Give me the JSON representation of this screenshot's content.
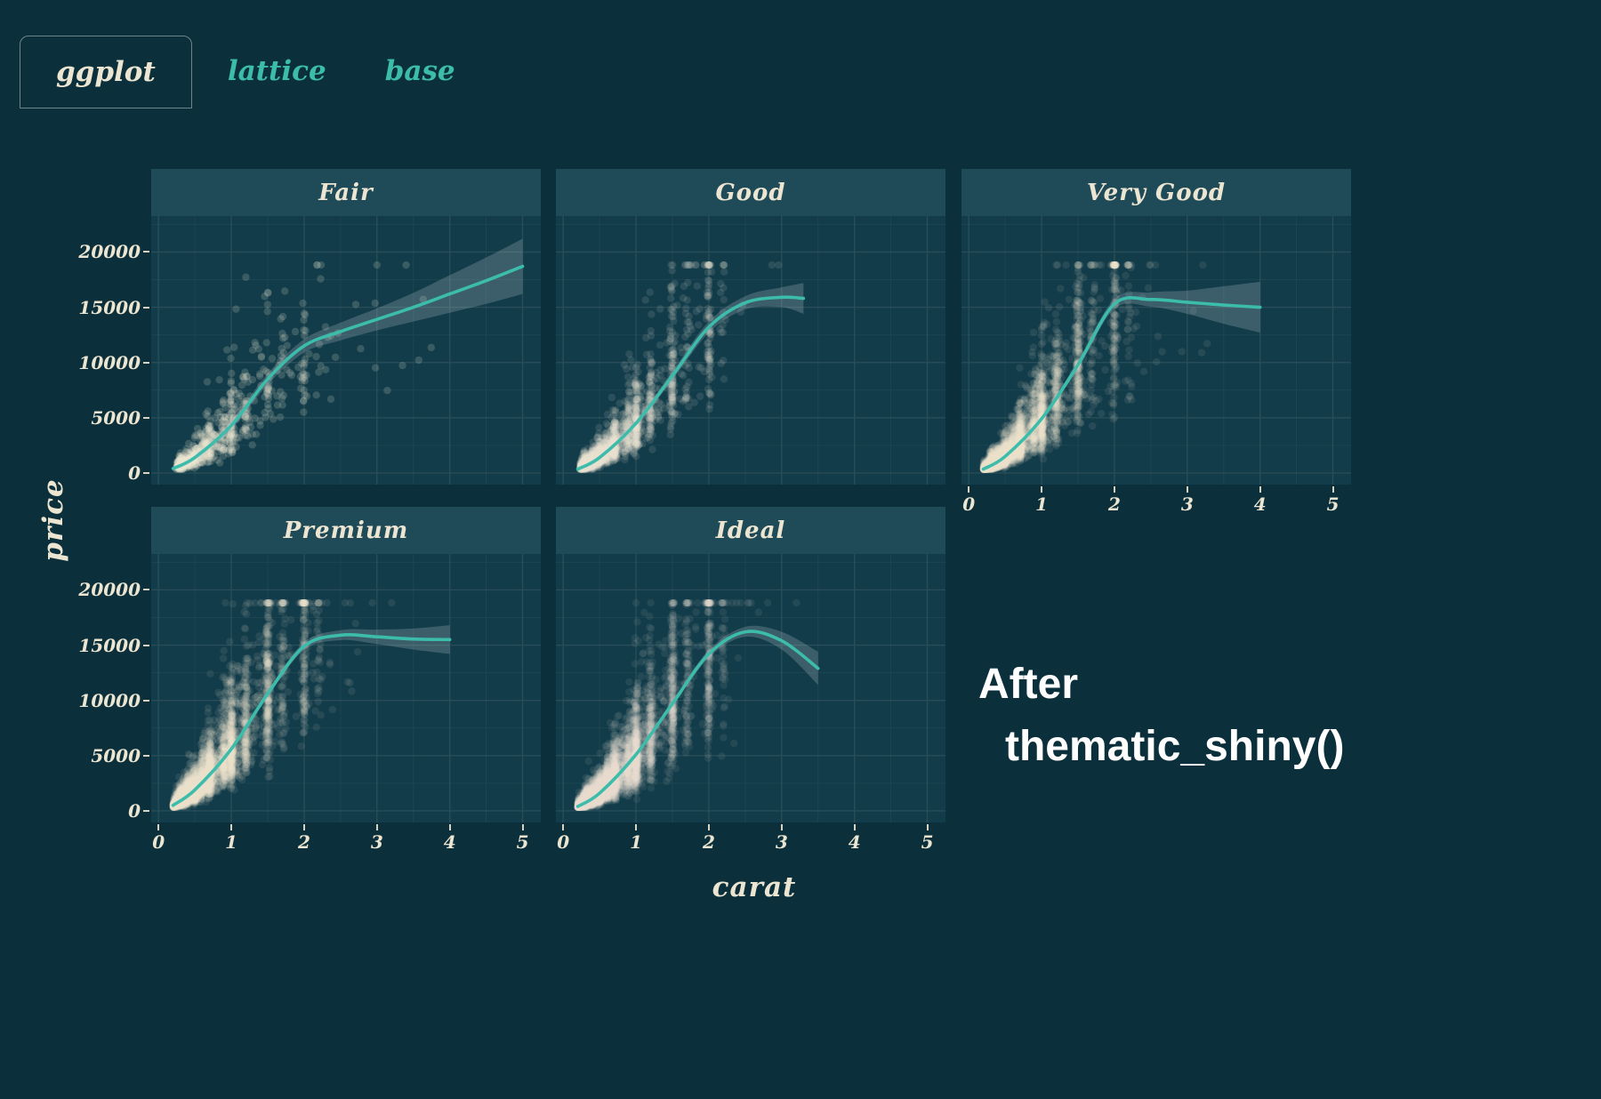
{
  "tabs": {
    "items": [
      {
        "label": "ggplot",
        "active": true
      },
      {
        "label": "lattice",
        "active": false
      },
      {
        "label": "base",
        "active": false
      }
    ]
  },
  "annotation": {
    "line1": "After",
    "line2": "thematic_shiny()"
  },
  "colors": {
    "page_bg": "#0b303b",
    "panel_bg": "#123c4a",
    "strip_bg": "#1f4b58",
    "foreground": "#ece5d1",
    "accent": "#3cbcab",
    "annotation_text": "#ffffff",
    "point": "#efe7d4",
    "ribbon": "rgba(205,220,225,0.22)",
    "grid_major": "rgba(236,231,211,0.10)",
    "grid_minor": "rgba(236,231,211,0.05)",
    "tab_inactive": "#3cbcab",
    "tab_active": "#ece5d1"
  },
  "chart_data": {
    "type": "scatter",
    "title": "",
    "xlabel": "carat",
    "ylabel": "price",
    "xlim": [
      -0.1,
      5.25
    ],
    "ylim": [
      -1050,
      23250
    ],
    "x_ticks": [
      0,
      1,
      2,
      3,
      4,
      5
    ],
    "y_ticks": [
      0,
      5000,
      10000,
      15000,
      20000
    ],
    "grid": "on",
    "legend": "none",
    "facet_layout": "3 columns, 2 rows, last cell empty",
    "carat_spikes": [
      [
        0.3,
        9
      ],
      [
        0.33,
        4
      ],
      [
        0.4,
        6
      ],
      [
        0.5,
        9
      ],
      [
        0.6,
        4
      ],
      [
        0.7,
        8
      ],
      [
        0.9,
        4
      ],
      [
        1.0,
        9
      ],
      [
        1.2,
        5
      ],
      [
        1.5,
        6
      ],
      [
        1.7,
        2
      ],
      [
        2.0,
        4
      ],
      [
        2.2,
        1
      ]
    ],
    "facets": [
      {
        "label": "Fair",
        "smooth": {
          "x": [
            0.2,
            0.5,
            1,
            1.5,
            2,
            2.5,
            3,
            3.5,
            4,
            4.5,
            5
          ],
          "y": [
            400,
            1400,
            4300,
            8500,
            11500,
            12800,
            13900,
            15000,
            16200,
            17400,
            18700
          ],
          "lo": [
            100,
            1100,
            3900,
            8000,
            10900,
            12000,
            12900,
            13700,
            14500,
            15300,
            16200
          ],
          "hi": [
            700,
            1700,
            4700,
            9000,
            12100,
            13600,
            14900,
            16300,
            17900,
            19500,
            21200
          ]
        },
        "points_sim": {
          "n": 700,
          "seed": 101,
          "spike_prob": 0.45,
          "carat_min": 0.25,
          "carat_max": 5.0,
          "tail_scale": 0.6,
          "noise_sigma": 0.38,
          "price_min": 330,
          "price_cap": 18820,
          "alpha": 0.18
        }
      },
      {
        "label": "Good",
        "smooth": {
          "x": [
            0.2,
            0.5,
            1,
            1.5,
            2,
            2.5,
            3,
            3.3
          ],
          "y": [
            350,
            1400,
            4500,
            8800,
            13200,
            15400,
            15900,
            15800
          ],
          "lo": [
            150,
            1200,
            4250,
            8400,
            12700,
            14800,
            15000,
            14400
          ],
          "hi": [
            550,
            1600,
            4750,
            9200,
            13700,
            16000,
            16800,
            17200
          ]
        },
        "points_sim": {
          "n": 2000,
          "seed": 102,
          "spike_prob": 0.55,
          "carat_min": 0.23,
          "carat_max": 3.05,
          "tail_scale": 0.42,
          "noise_sigma": 0.38,
          "price_min": 330,
          "price_cap": 18820,
          "alpha": 0.12
        }
      },
      {
        "label": "Very Good",
        "smooth": {
          "x": [
            0.2,
            0.5,
            1,
            1.5,
            2,
            2.5,
            3,
            3.5,
            4
          ],
          "y": [
            350,
            1500,
            4900,
            9800,
            15300,
            15700,
            15450,
            15200,
            15000
          ],
          "lo": [
            220,
            1380,
            4720,
            9450,
            14850,
            15050,
            14400,
            13500,
            12700
          ],
          "hi": [
            480,
            1620,
            5080,
            10150,
            15750,
            16350,
            16500,
            16900,
            17300
          ]
        },
        "points_sim": {
          "n": 4200,
          "seed": 103,
          "spike_prob": 0.55,
          "carat_min": 0.2,
          "carat_max": 4.0,
          "tail_scale": 0.4,
          "noise_sigma": 0.38,
          "price_min": 330,
          "price_cap": 18820,
          "alpha": 0.09
        }
      },
      {
        "label": "Premium",
        "smooth": {
          "x": [
            0.2,
            0.5,
            1,
            1.5,
            2,
            2.5,
            3,
            3.5,
            4
          ],
          "y": [
            500,
            1900,
            5600,
            10600,
            14900,
            15900,
            15750,
            15550,
            15500
          ],
          "lo": [
            380,
            1780,
            5430,
            10330,
            14550,
            15450,
            15100,
            14600,
            14200
          ],
          "hi": [
            620,
            2020,
            5770,
            10870,
            15250,
            16350,
            16400,
            16500,
            16800
          ]
        },
        "points_sim": {
          "n": 4600,
          "seed": 104,
          "spike_prob": 0.55,
          "carat_min": 0.2,
          "carat_max": 4.0,
          "tail_scale": 0.42,
          "noise_sigma": 0.38,
          "price_min": 330,
          "price_cap": 18820,
          "alpha": 0.09
        }
      },
      {
        "label": "Ideal",
        "smooth": {
          "x": [
            0.2,
            0.5,
            1,
            1.5,
            2,
            2.5,
            3,
            3.5
          ],
          "y": [
            400,
            1600,
            5100,
            9700,
            14200,
            16200,
            15400,
            12900
          ],
          "lo": [
            310,
            1510,
            4950,
            9450,
            13850,
            15750,
            14600,
            11400
          ],
          "hi": [
            490,
            1690,
            5250,
            9950,
            14550,
            16650,
            16200,
            14400
          ]
        },
        "points_sim": {
          "n": 6200,
          "seed": 105,
          "spike_prob": 0.5,
          "carat_min": 0.2,
          "carat_max": 3.5,
          "tail_scale": 0.36,
          "noise_sigma": 0.38,
          "price_min": 330,
          "price_cap": 18820,
          "alpha": 0.08
        }
      }
    ]
  }
}
